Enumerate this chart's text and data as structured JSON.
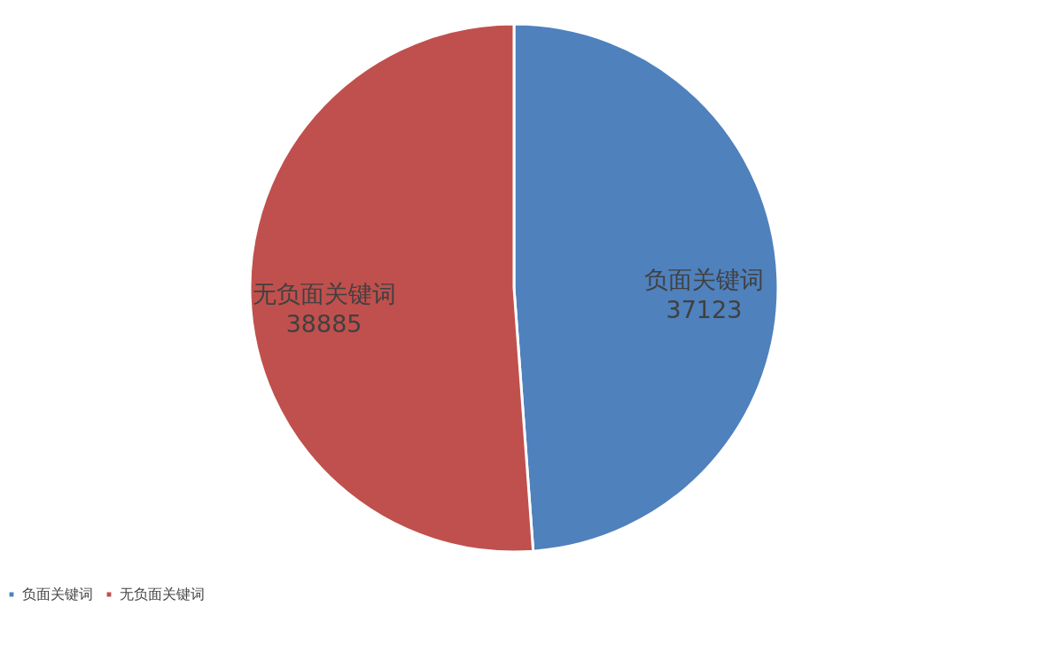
{
  "chart_data": {
    "type": "pie",
    "categories": [
      "负面关键词",
      "无负面关键词"
    ],
    "values": [
      37123,
      38885
    ],
    "colors": [
      "#4f81bd",
      "#c0504d"
    ],
    "data_labels": true,
    "legend": "bottom"
  }
}
